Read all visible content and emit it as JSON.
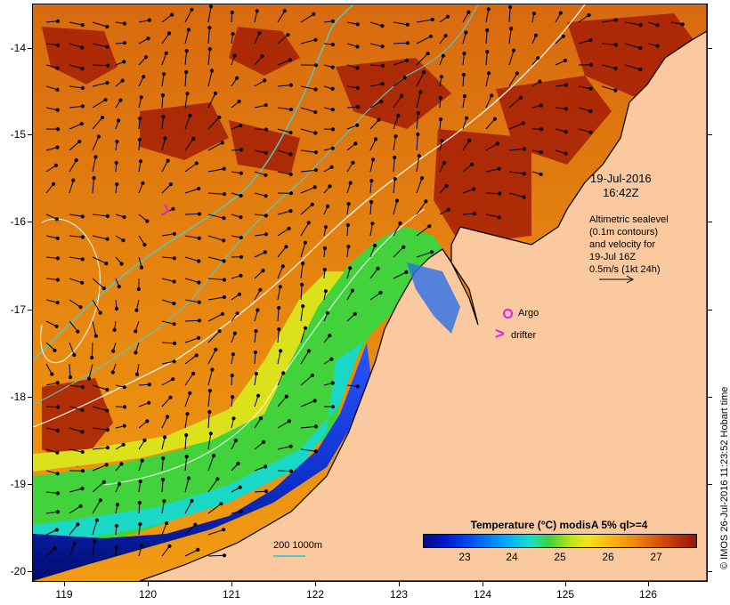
{
  "map": {
    "y_ticks": [
      "-14",
      "-15",
      "-16",
      "-17",
      "-18",
      "-19",
      "-20"
    ],
    "x_ticks": [
      "119",
      "120",
      "121",
      "122",
      "123",
      "124",
      "125",
      "126"
    ],
    "timestamp_line1": "19-Jul-2016",
    "timestamp_line2": "16:42Z",
    "legend_lines": [
      "Altimetric sealevel",
      "(0.1m contours)",
      "and velocity for",
      "19-Jul 16Z",
      "0.5m/s (1kt 24h)"
    ],
    "argo_label": "Argo",
    "drifter_label": "drifter",
    "drifter_glyph": ">",
    "depth_contours_label": "200  1000m",
    "colorbar_title": "Temperature (°C) modisA 5% ql>=4",
    "colorbar_ticks": [
      "23",
      "24",
      "25",
      "26",
      "27"
    ],
    "credit": "© IMOS 26-Jul-2016 11:23:52 Hobart time",
    "colors": {
      "land": "#fac9a0",
      "warm_sst": "#ef8410",
      "cool_sst": "#3fd23b",
      "argo_marker": "#e81ce8",
      "contour_200m": "#55c7c4",
      "contour_1000m": "#ffffff"
    }
  }
}
